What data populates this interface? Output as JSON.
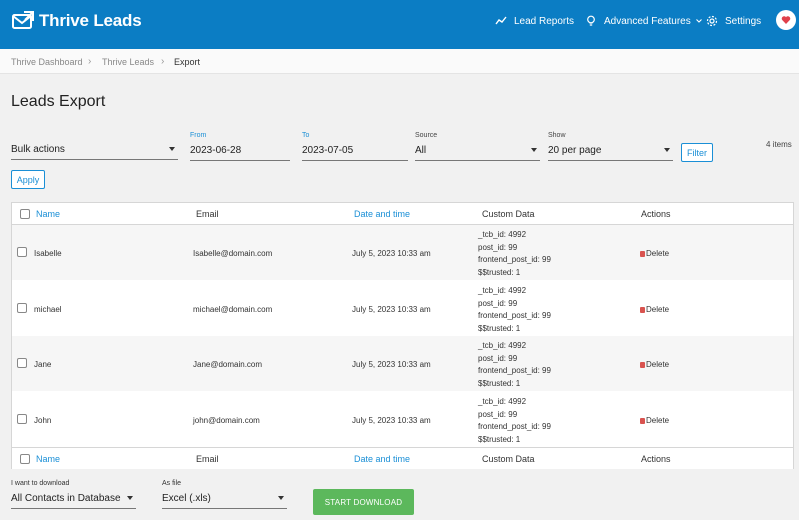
{
  "header": {
    "brand": "Thrive Leads",
    "nav": {
      "lead_reports": "Lead Reports",
      "advanced_features": "Advanced Features",
      "settings": "Settings"
    },
    "accent_color": "#0b7dc4",
    "icons": [
      "chart-line-icon",
      "lightbulb-icon",
      "chevron-down-icon",
      "gear-icon",
      "heart-icon"
    ]
  },
  "breadcrumb": {
    "items": [
      "Thrive Dashboard",
      "Thrive Leads",
      "Export"
    ],
    "separator": "›"
  },
  "page_title": "Leads Export",
  "filters": {
    "bulk_actions": "Bulk actions",
    "from_label": "From",
    "from_value": "2023-06-28",
    "to_label": "To",
    "to_value": "2023-07-05",
    "source_label": "Source",
    "source_value": "All",
    "show_label": "Show",
    "show_value": "20 per page",
    "filter_button": "Filter",
    "apply_button": "Apply",
    "items_count": "4 items"
  },
  "table": {
    "columns": {
      "name": "Name",
      "email": "Email",
      "date": "Date and time",
      "custom": "Custom Data",
      "actions": "Actions"
    },
    "rows": [
      {
        "name": "Isabelle",
        "email": "Isabelle@domain.com",
        "date": "July 5, 2023 10:33 am",
        "custom": [
          "_tcb_id: 4992",
          "post_id: 99",
          "frontend_post_id: 99",
          "$$trusted: 1"
        ],
        "action": "Delete"
      },
      {
        "name": "michael",
        "email": "michael@domain.com",
        "date": "July 5, 2023 10:33 am",
        "custom": [
          "_tcb_id: 4992",
          "post_id: 99",
          "frontend_post_id: 99",
          "$$trusted: 1"
        ],
        "action": "Delete"
      },
      {
        "name": "Jane",
        "email": "Jane@domain.com",
        "date": "July 5, 2023 10:33 am",
        "custom": [
          "_tcb_id: 4992",
          "post_id: 99",
          "frontend_post_id: 99",
          "$$trusted: 1"
        ],
        "action": "Delete"
      },
      {
        "name": "John",
        "email": "john@domain.com",
        "date": "July 5, 2023 10:33 am",
        "custom": [
          "_tcb_id: 4992",
          "post_id: 99",
          "frontend_post_id: 99",
          "$$trusted: 1"
        ],
        "action": "Delete"
      }
    ]
  },
  "download": {
    "want_label": "I want to download",
    "want_value": "All Contacts in Database",
    "file_label": "As file",
    "file_value": "Excel (.xls)",
    "button": "START DOWNLOAD",
    "button_color": "#5cb85c"
  }
}
